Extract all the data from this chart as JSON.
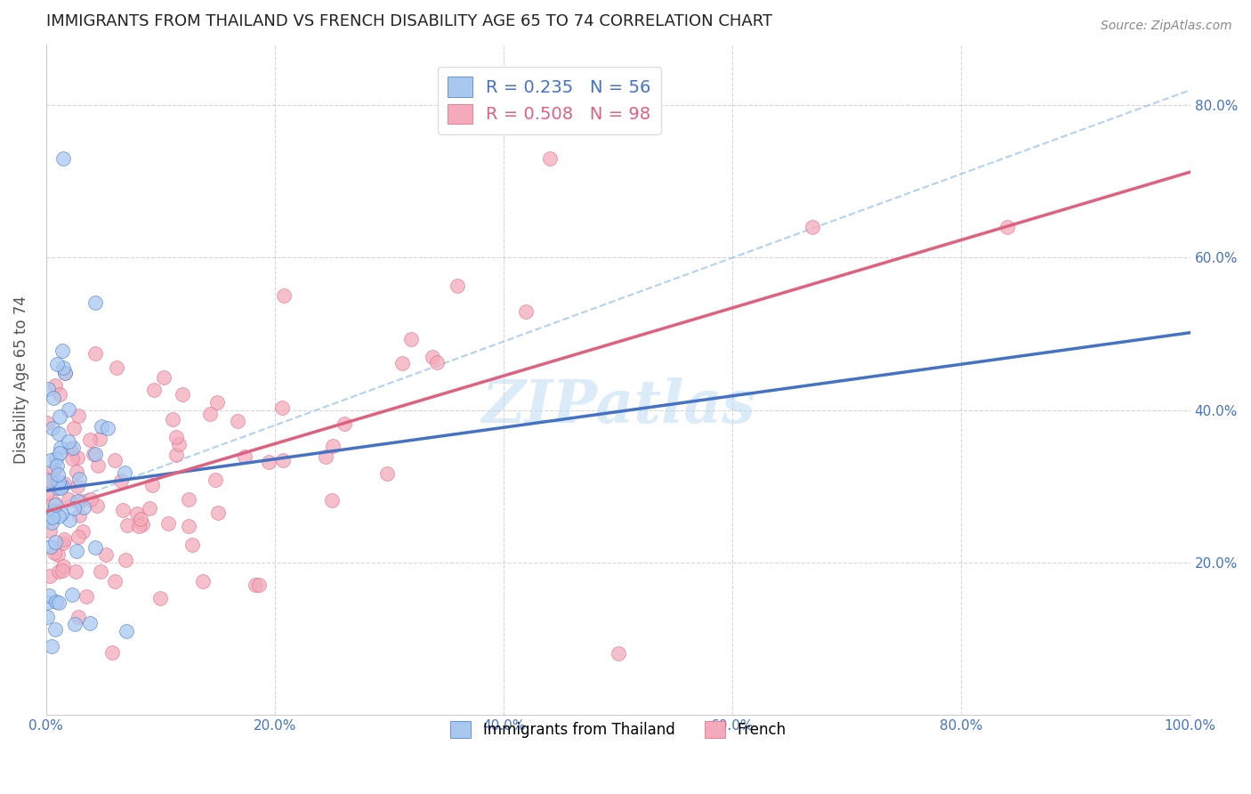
{
  "title": "IMMIGRANTS FROM THAILAND VS FRENCH DISABILITY AGE 65 TO 74 CORRELATION CHART",
  "source": "Source: ZipAtlas.com",
  "ylabel": "Disability Age 65 to 74",
  "xmin": 0.0,
  "xmax": 1.0,
  "ymin": 0.0,
  "ymax": 0.88,
  "x_tick_labels": [
    "0.0%",
    "20.0%",
    "40.0%",
    "60.0%",
    "80.0%",
    "100.0%"
  ],
  "x_tick_vals": [
    0.0,
    0.2,
    0.4,
    0.6,
    0.8,
    1.0
  ],
  "y_tick_labels": [
    "20.0%",
    "40.0%",
    "60.0%",
    "80.0%"
  ],
  "y_tick_vals": [
    0.2,
    0.4,
    0.6,
    0.8
  ],
  "series1_color": "#A8C8F0",
  "series2_color": "#F4AABB",
  "series1_label": "Immigrants from Thailand",
  "series2_label": "French",
  "series1_R": 0.235,
  "series1_N": 56,
  "series2_R": 0.508,
  "series2_N": 98,
  "line1_color": "#4472C4",
  "line2_color": "#E06080",
  "ref_line_color": "#AACCEE",
  "watermark": "ZIPatlas",
  "background_color": "#FFFFFF",
  "legend_text_color1": "#4472C4",
  "legend_text_color2": "#E06080",
  "title_fontsize": 13,
  "tick_fontsize": 11,
  "legend_fontsize": 14
}
